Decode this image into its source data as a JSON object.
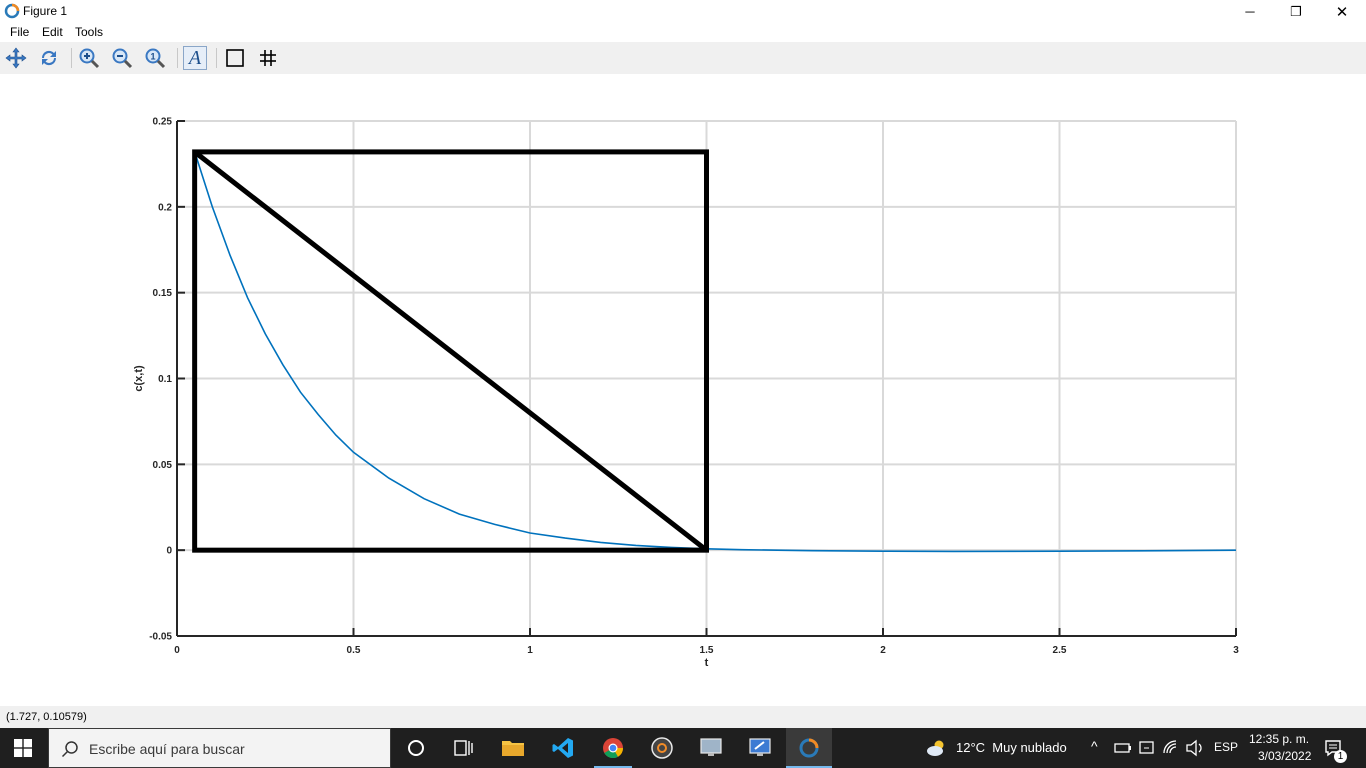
{
  "window": {
    "title": "Figure 1",
    "controls": {
      "minimize": "─",
      "restore": "❐",
      "close": "✕"
    }
  },
  "menu": {
    "file": "File",
    "edit": "Edit",
    "tools": "Tools"
  },
  "toolbar": {
    "icons": [
      "pan-icon",
      "rotate-icon",
      "zoom-in-icon",
      "zoom-out-icon",
      "zoom-reset-icon",
      "text-annotation-icon",
      "axes-box-icon",
      "grid-icon"
    ],
    "text_button_glyph": "A"
  },
  "chart_data": {
    "type": "line",
    "xlabel": "t",
    "ylabel": "c(x,t)",
    "xlim": [
      0,
      3
    ],
    "ylim": [
      -0.05,
      0.25
    ],
    "xticks": [
      0,
      0.5,
      1,
      1.5,
      2,
      2.5,
      3
    ],
    "xtick_labels": [
      "0",
      "0.5",
      "1",
      "1.5",
      "2",
      "2.5",
      "3"
    ],
    "yticks": [
      -0.05,
      0,
      0.05,
      0.1,
      0.15,
      0.2,
      0.25
    ],
    "ytick_labels": [
      "-0.05",
      "0",
      "0.05",
      "0.1",
      "0.15",
      "0.2",
      "0.25"
    ],
    "grid": true,
    "series": [
      {
        "color": "#0072bd",
        "x": [
          0.05,
          0.1,
          0.15,
          0.2,
          0.25,
          0.3,
          0.35,
          0.4,
          0.45,
          0.5,
          0.6,
          0.7,
          0.8,
          0.9,
          1.0,
          1.1,
          1.2,
          1.3,
          1.4,
          1.5,
          1.6,
          1.7,
          1.8,
          2.0,
          2.2,
          2.5,
          2.8,
          3.0
        ],
        "y": [
          0.232,
          0.2,
          0.172,
          0.147,
          0.126,
          0.108,
          0.092,
          0.079,
          0.067,
          0.057,
          0.042,
          0.03,
          0.021,
          0.015,
          0.01,
          0.007,
          0.0045,
          0.0028,
          0.0016,
          0.0008,
          0.0003,
          0.0,
          -0.0003,
          -0.0006,
          -0.0007,
          -0.0006,
          -0.0003,
          0.0
        ]
      }
    ],
    "overlay": {
      "color": "#000000",
      "rectangle": {
        "x0": 0.05,
        "x1": 1.5,
        "y0": 0.0,
        "y1": 0.232
      },
      "diagonal": {
        "x0": 0.05,
        "y0": 0.232,
        "x1": 1.5,
        "y1": 0.0
      }
    }
  },
  "status": {
    "coords": "(1.727, 0.10579)"
  },
  "taskbar": {
    "search_placeholder": "Escribe aquí para buscar",
    "weather": "12°C  Muy nublado",
    "lang": "ESP",
    "time": "12:35 p. m.",
    "date": "3/03/2022",
    "notifications": "1"
  }
}
